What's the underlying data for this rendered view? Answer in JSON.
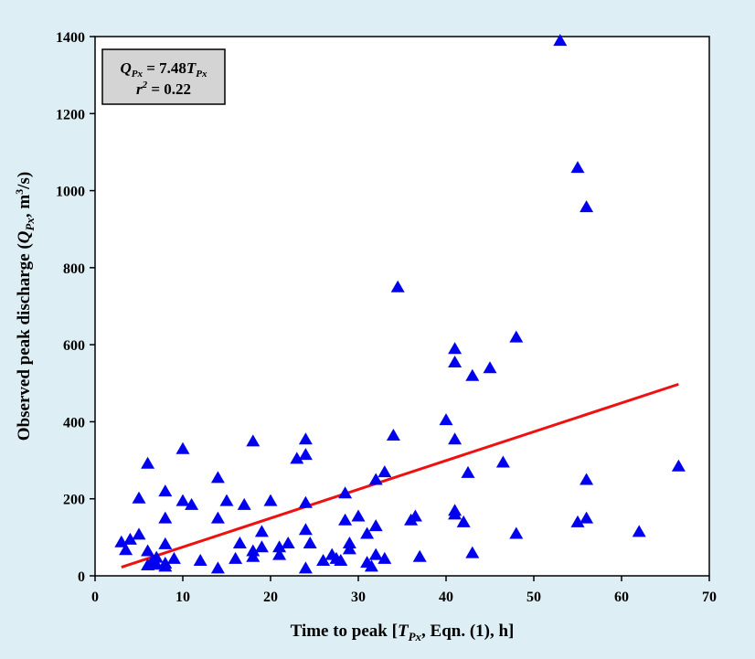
{
  "chart_data": {
    "type": "scatter",
    "xlabel": "Time to peak [Tₚₓ, Eqn. (1), h]",
    "xlabel_parts": [
      "Time to peak [",
      "T",
      "Px",
      ", Eqn. (1), h]"
    ],
    "ylabel": "Observed peak discharge (Qₚₓ, m³/s)",
    "ylabel_parts": [
      "Observed peak discharge (",
      "Q",
      "Px",
      ", m",
      "3",
      "/s)"
    ],
    "xlim": [
      0,
      70
    ],
    "ylim": [
      0,
      1400
    ],
    "xticks": [
      0,
      10,
      20,
      30,
      40,
      50,
      60,
      70
    ],
    "yticks": [
      0,
      200,
      400,
      600,
      800,
      1000,
      1200,
      1400
    ],
    "grid": false,
    "annotation": {
      "line1_parts": [
        "Q",
        "Px",
        " = 7.48",
        "T",
        "Px"
      ],
      "line2_parts": [
        "r",
        "2",
        " = 0.22"
      ]
    },
    "colors": {
      "points": "#0000ee",
      "fit_line": "#ee1111",
      "background": "#deeef5",
      "annotation_box": "#d4d4d4"
    },
    "fit_line": {
      "slope": 7.48,
      "x_start": 3,
      "x_end": 66.5
    },
    "points": [
      [
        3,
        88
      ],
      [
        3.5,
        68
      ],
      [
        4,
        95
      ],
      [
        5,
        108
      ],
      [
        5,
        202
      ],
      [
        6,
        292
      ],
      [
        6,
        65
      ],
      [
        6.5,
        38
      ],
      [
        6,
        28
      ],
      [
        7,
        30
      ],
      [
        7,
        48
      ],
      [
        8,
        150
      ],
      [
        8,
        220
      ],
      [
        8,
        83
      ],
      [
        8,
        33
      ],
      [
        8,
        25
      ],
      [
        9,
        45
      ],
      [
        10,
        195
      ],
      [
        10,
        330
      ],
      [
        11,
        185
      ],
      [
        12,
        40
      ],
      [
        14,
        255
      ],
      [
        14,
        150
      ],
      [
        14,
        20
      ],
      [
        15,
        195
      ],
      [
        16,
        45
      ],
      [
        16.5,
        85
      ],
      [
        17,
        185
      ],
      [
        18,
        350
      ],
      [
        18,
        65
      ],
      [
        18,
        50
      ],
      [
        19,
        75
      ],
      [
        19,
        115
      ],
      [
        20,
        195
      ],
      [
        21,
        75
      ],
      [
        21,
        55
      ],
      [
        22,
        85
      ],
      [
        23,
        305
      ],
      [
        24,
        355
      ],
      [
        24,
        315
      ],
      [
        24,
        190
      ],
      [
        24,
        120
      ],
      [
        24,
        20
      ],
      [
        24.5,
        85
      ],
      [
        26,
        40
      ],
      [
        27,
        55
      ],
      [
        27.5,
        45
      ],
      [
        28,
        40
      ],
      [
        28.5,
        215
      ],
      [
        28.5,
        145
      ],
      [
        29,
        70
      ],
      [
        29,
        85
      ],
      [
        30,
        155
      ],
      [
        31,
        110
      ],
      [
        31,
        35
      ],
      [
        31.5,
        25
      ],
      [
        32,
        130
      ],
      [
        32,
        55
      ],
      [
        32,
        250
      ],
      [
        33,
        270
      ],
      [
        33,
        45
      ],
      [
        34,
        365
      ],
      [
        34.5,
        750
      ],
      [
        36,
        145
      ],
      [
        36.5,
        155
      ],
      [
        37,
        50
      ],
      [
        40,
        405
      ],
      [
        41,
        590
      ],
      [
        41,
        555
      ],
      [
        41,
        355
      ],
      [
        41,
        170
      ],
      [
        41,
        160
      ],
      [
        42,
        140
      ],
      [
        42.5,
        268
      ],
      [
        43,
        520
      ],
      [
        43,
        60
      ],
      [
        45,
        540
      ],
      [
        46.5,
        295
      ],
      [
        48,
        620
      ],
      [
        48,
        110
      ],
      [
        53,
        1390
      ],
      [
        55,
        1060
      ],
      [
        55,
        140
      ],
      [
        56,
        958
      ],
      [
        56,
        250
      ],
      [
        56,
        150
      ],
      [
        62,
        115
      ],
      [
        66.5,
        285
      ]
    ]
  }
}
